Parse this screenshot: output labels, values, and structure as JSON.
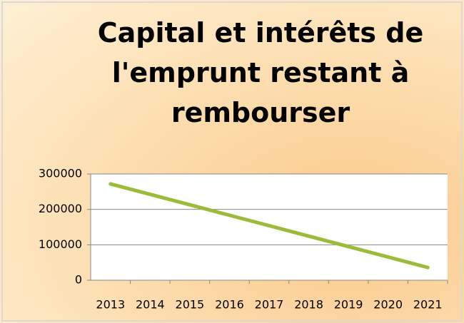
{
  "chart_data": {
    "type": "line",
    "title": "Capital et intérêts de l'emprunt restant à rembourser",
    "categories": [
      "2013",
      "2014",
      "2015",
      "2016",
      "2017",
      "2018",
      "2019",
      "2020",
      "2021"
    ],
    "series": [
      {
        "name": "Capital et intérêts de l'emprunt restant à rembourser",
        "color": "#9bbb3b",
        "values": [
          272000,
          242500,
          213000,
          183500,
          154000,
          124500,
          95000,
          65500,
          36000
        ]
      }
    ],
    "ylim": [
      0,
      300000
    ],
    "yticks": [
      0,
      100000,
      200000,
      300000
    ],
    "grid": true
  }
}
